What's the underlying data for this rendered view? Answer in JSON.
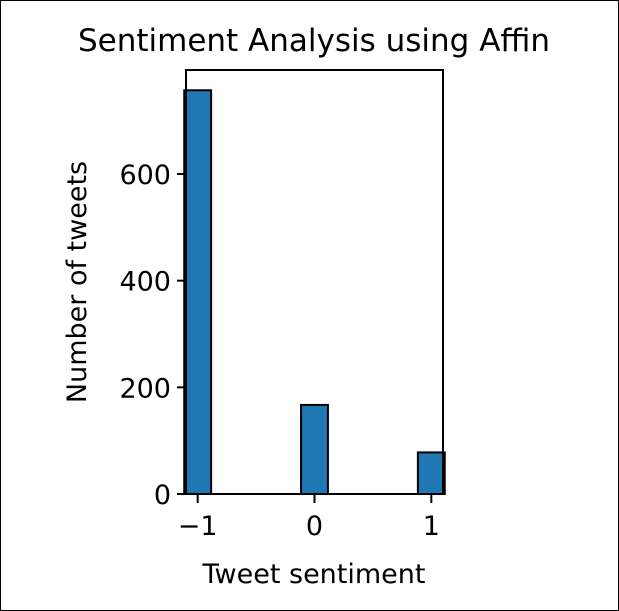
{
  "chart_data": {
    "type": "bar",
    "title": "Sentiment Analysis using Affin",
    "xlabel": "Tweet sentiment",
    "ylabel": "Number of tweets",
    "x": [
      -1,
      0,
      1
    ],
    "values": [
      757,
      167,
      78
    ],
    "xticks": [
      -1,
      0,
      1
    ],
    "xtick_labels": [
      "−1",
      "0",
      "1"
    ],
    "yticks": [
      0,
      200,
      400,
      600
    ],
    "ytick_labels": [
      "0",
      "200",
      "400",
      "600"
    ],
    "xlim": [
      -1.1,
      1.1
    ],
    "ylim": [
      0,
      795
    ],
    "grid": false,
    "bar_color": "#1f77b4",
    "edge_color": "#000000"
  }
}
